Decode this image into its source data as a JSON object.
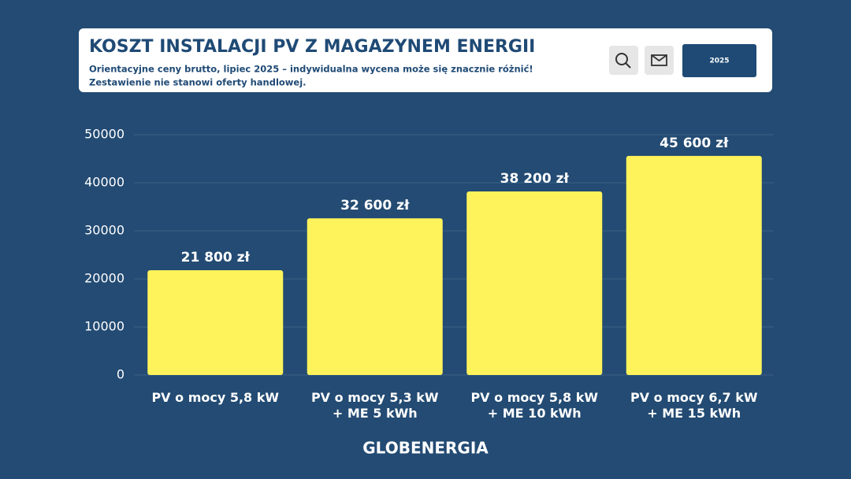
{
  "header": {
    "title": "KOSZT INSTALACJI PV Z MAGAZYNEM ENERGII",
    "subtitle": [
      "Orientacyjne ceny brutto, lipiec 2025 – indywidualna wycena może się znacznie różnić!",
      "Zestawienie nie stanowi oferty handlowej."
    ],
    "button": "2025"
  },
  "chart_data": {
    "type": "bar",
    "categories": [
      "PV o mocy 5,8 kW",
      "PV o mocy 5,3 kW\n+ ME 5 kWh",
      "PV o mocy 5,8 kW\n+ ME 10 kWh",
      "PV o mocy 6,7 kW\n+ ME 15 kWh"
    ],
    "values": [
      21800,
      32600,
      38200,
      45600
    ],
    "value_labels": [
      "21 800 zł",
      "32 600 zł",
      "38 200 zł",
      "45 600 zł"
    ],
    "color": "#fff35c",
    "ylim": [
      0,
      50000
    ],
    "yticks": [
      0,
      10000,
      20000,
      30000,
      40000,
      50000
    ],
    "grid": true
  },
  "footer": {
    "logo": "GLOBENERGIA"
  }
}
